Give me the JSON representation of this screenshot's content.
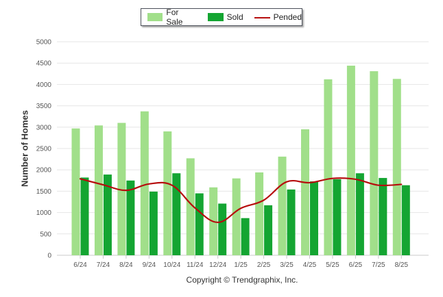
{
  "legend": {
    "for_sale": "For Sale",
    "sold": "Sold",
    "pended": "Pended"
  },
  "ylabel": "Number of Homes",
  "credit": "Copyright © Trendgraphix, Inc.",
  "colors": {
    "for_sale": "#a1df8a",
    "sold": "#14a532",
    "pended": "#b60d0d",
    "grid": "#e6e6e6",
    "axis_text": "#555555"
  },
  "chart_data": {
    "type": "bar",
    "categories": [
      "6/24",
      "7/24",
      "8/24",
      "9/24",
      "10/24",
      "11/24",
      "12/24",
      "1/25",
      "2/25",
      "3/25",
      "4/25",
      "5/25",
      "6/25",
      "7/25",
      "8/25"
    ],
    "series": [
      {
        "name": "For Sale",
        "type": "bar",
        "values": [
          2970,
          3040,
          3100,
          3370,
          2900,
          2270,
          1590,
          1800,
          1940,
          2310,
          2950,
          4120,
          4440,
          4310,
          4130
        ]
      },
      {
        "name": "Sold",
        "type": "bar",
        "values": [
          1820,
          1890,
          1750,
          1490,
          1920,
          1450,
          1210,
          870,
          1170,
          1540,
          1730,
          1780,
          1920,
          1810,
          1640
        ]
      },
      {
        "name": "Pended",
        "type": "line",
        "values": [
          1790,
          1650,
          1520,
          1670,
          1640,
          1110,
          770,
          1100,
          1290,
          1720,
          1700,
          1800,
          1780,
          1640,
          1660
        ]
      }
    ],
    "yticks": [
      0,
      500,
      1000,
      1500,
      2000,
      2500,
      3000,
      3500,
      4000,
      4500,
      5000
    ],
    "ylim": [
      0,
      5000
    ],
    "xlabel": "",
    "ylabel": "Number of Homes",
    "grid": true,
    "legend_position": "top-center"
  }
}
